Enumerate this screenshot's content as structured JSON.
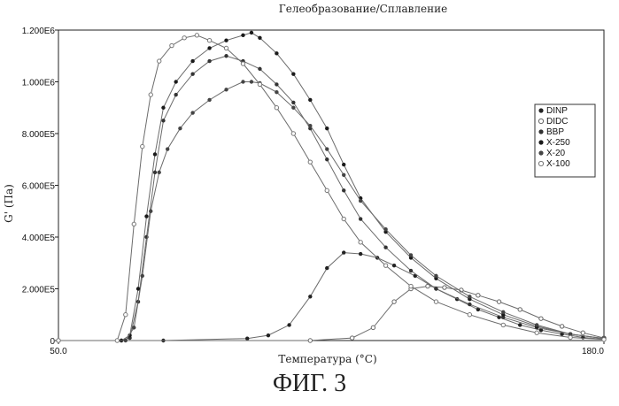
{
  "caption": "ФИГ. 3",
  "chart_data": {
    "type": "line",
    "title": "Гелеобразование/Сплавление",
    "xlabel": "Температура (°C)",
    "ylabel": "G' (Па)",
    "xlim": [
      50,
      180
    ],
    "ylim": [
      0,
      1200000
    ],
    "x_tick_labels": [
      {
        "value": 50,
        "label": "50.0"
      },
      {
        "value": 180,
        "label": "180.0"
      }
    ],
    "y_tick_labels": [
      {
        "value": 0,
        "label": "0"
      },
      {
        "value": 200000,
        "label": "2.000E5"
      },
      {
        "value": 400000,
        "label": "4.000E5"
      },
      {
        "value": 600000,
        "label": "6.000E5"
      },
      {
        "value": 800000,
        "label": "8.000E5"
      },
      {
        "value": 1000000,
        "label": "1.000E6"
      },
      {
        "value": 1200000,
        "label": "1.200E6"
      }
    ],
    "legend_position": "right",
    "line_color": "#6b6b6b",
    "series": [
      {
        "name": "DINP",
        "marker": "dot",
        "color": "#222222",
        "points": [
          [
            50,
            0
          ],
          [
            75,
            0
          ],
          [
            95,
            8000
          ],
          [
            100,
            20000
          ],
          [
            105,
            60000
          ],
          [
            110,
            170000
          ],
          [
            114,
            280000
          ],
          [
            118,
            340000
          ],
          [
            122,
            335000
          ],
          [
            126,
            320000
          ],
          [
            130,
            290000
          ],
          [
            135,
            250000
          ],
          [
            140,
            200000
          ],
          [
            145,
            160000
          ],
          [
            150,
            120000
          ],
          [
            155,
            90000
          ],
          [
            160,
            60000
          ],
          [
            165,
            40000
          ],
          [
            170,
            25000
          ],
          [
            175,
            12000
          ],
          [
            180,
            5000
          ]
        ]
      },
      {
        "name": "DIDC",
        "marker": "open",
        "color": "#666666",
        "points": [
          [
            50,
            0
          ],
          [
            110,
            0
          ],
          [
            120,
            10000
          ],
          [
            125,
            50000
          ],
          [
            130,
            150000
          ],
          [
            134,
            200000
          ],
          [
            138,
            210000
          ],
          [
            142,
            205000
          ],
          [
            146,
            195000
          ],
          [
            150,
            175000
          ],
          [
            155,
            150000
          ],
          [
            160,
            120000
          ],
          [
            165,
            85000
          ],
          [
            170,
            55000
          ],
          [
            175,
            30000
          ],
          [
            180,
            10000
          ]
        ]
      },
      {
        "name": "BBP",
        "marker": "dot",
        "color": "#333333",
        "points": [
          [
            50,
            0
          ],
          [
            65,
            0
          ],
          [
            67,
            10000
          ],
          [
            69,
            150000
          ],
          [
            71,
            400000
          ],
          [
            73,
            650000
          ],
          [
            75,
            850000
          ],
          [
            78,
            950000
          ],
          [
            82,
            1030000
          ],
          [
            86,
            1080000
          ],
          [
            90,
            1100000
          ],
          [
            94,
            1080000
          ],
          [
            98,
            1050000
          ],
          [
            102,
            990000
          ],
          [
            106,
            920000
          ],
          [
            110,
            820000
          ],
          [
            114,
            700000
          ],
          [
            118,
            580000
          ],
          [
            122,
            470000
          ],
          [
            128,
            360000
          ],
          [
            134,
            270000
          ],
          [
            140,
            200000
          ],
          [
            148,
            140000
          ],
          [
            156,
            90000
          ],
          [
            164,
            50000
          ],
          [
            172,
            25000
          ],
          [
            180,
            8000
          ]
        ]
      },
      {
        "name": "X-250",
        "marker": "dot",
        "color": "#1a1a1a",
        "points": [
          [
            50,
            0
          ],
          [
            65,
            0
          ],
          [
            67,
            20000
          ],
          [
            69,
            200000
          ],
          [
            71,
            480000
          ],
          [
            73,
            720000
          ],
          [
            75,
            900000
          ],
          [
            78,
            1000000
          ],
          [
            82,
            1080000
          ],
          [
            86,
            1130000
          ],
          [
            90,
            1160000
          ],
          [
            94,
            1180000
          ],
          [
            96,
            1190000
          ],
          [
            98,
            1170000
          ],
          [
            102,
            1110000
          ],
          [
            106,
            1030000
          ],
          [
            110,
            930000
          ],
          [
            114,
            820000
          ],
          [
            118,
            680000
          ],
          [
            122,
            550000
          ],
          [
            128,
            420000
          ],
          [
            134,
            320000
          ],
          [
            140,
            240000
          ],
          [
            148,
            160000
          ],
          [
            156,
            100000
          ],
          [
            164,
            55000
          ],
          [
            172,
            25000
          ],
          [
            180,
            8000
          ]
        ]
      },
      {
        "name": "X-20",
        "marker": "dot",
        "color": "#444444",
        "points": [
          [
            50,
            0
          ],
          [
            66,
            0
          ],
          [
            68,
            50000
          ],
          [
            70,
            250000
          ],
          [
            72,
            500000
          ],
          [
            74,
            650000
          ],
          [
            76,
            740000
          ],
          [
            79,
            820000
          ],
          [
            82,
            880000
          ],
          [
            86,
            930000
          ],
          [
            90,
            970000
          ],
          [
            94,
            1000000
          ],
          [
            96,
            1000000
          ],
          [
            98,
            995000
          ],
          [
            102,
            960000
          ],
          [
            106,
            900000
          ],
          [
            110,
            830000
          ],
          [
            114,
            740000
          ],
          [
            118,
            640000
          ],
          [
            122,
            540000
          ],
          [
            128,
            430000
          ],
          [
            134,
            330000
          ],
          [
            140,
            250000
          ],
          [
            148,
            170000
          ],
          [
            156,
            110000
          ],
          [
            164,
            60000
          ],
          [
            172,
            25000
          ],
          [
            180,
            8000
          ]
        ]
      },
      {
        "name": "X-100",
        "marker": "open",
        "color": "#777777",
        "points": [
          [
            50,
            0
          ],
          [
            64,
            0
          ],
          [
            66,
            100000
          ],
          [
            68,
            450000
          ],
          [
            70,
            750000
          ],
          [
            72,
            950000
          ],
          [
            74,
            1080000
          ],
          [
            77,
            1140000
          ],
          [
            80,
            1170000
          ],
          [
            83,
            1180000
          ],
          [
            86,
            1160000
          ],
          [
            90,
            1130000
          ],
          [
            94,
            1070000
          ],
          [
            98,
            990000
          ],
          [
            102,
            900000
          ],
          [
            106,
            800000
          ],
          [
            110,
            690000
          ],
          [
            114,
            580000
          ],
          [
            118,
            470000
          ],
          [
            122,
            380000
          ],
          [
            128,
            290000
          ],
          [
            134,
            210000
          ],
          [
            140,
            150000
          ],
          [
            148,
            100000
          ],
          [
            156,
            60000
          ],
          [
            164,
            30000
          ],
          [
            172,
            12000
          ],
          [
            180,
            4000
          ]
        ]
      }
    ]
  }
}
